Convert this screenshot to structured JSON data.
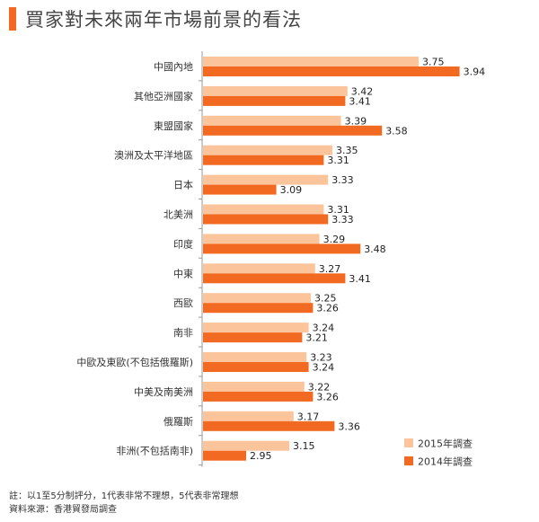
{
  "page": {
    "title": "買家對未來兩年市場前景的看法",
    "notes": [
      "註：以1至5分制評分，1代表非常不理想，5代表非常理想",
      "資料來源：香港貿發局調查"
    ]
  },
  "colors": {
    "title_accent": "#f26a21",
    "series_2015": "#fbc49a",
    "series_2014": "#f26a21"
  },
  "chart_data": {
    "type": "bar",
    "orientation": "horizontal",
    "title": "買家對未來兩年市場前景的看法",
    "categories": [
      "中國內地",
      "其他亞洲國家",
      "東盟國家",
      "澳洲及太平洋地區",
      "日本",
      "北美洲",
      "印度",
      "中東",
      "西歐",
      "南非",
      "中歐及東歐(不包括俄羅斯)",
      "中美及南美洲",
      "俄羅斯",
      "非洲(不包括南非)"
    ],
    "series": [
      {
        "name": "2015年調查",
        "color": "#fbc49a",
        "values": [
          3.75,
          3.42,
          3.39,
          3.35,
          3.33,
          3.31,
          3.29,
          3.27,
          3.25,
          3.24,
          3.23,
          3.22,
          3.17,
          3.15
        ]
      },
      {
        "name": "2014年調查",
        "color": "#f26a21",
        "values": [
          3.94,
          3.41,
          3.58,
          3.31,
          3.09,
          3.33,
          3.48,
          3.41,
          3.26,
          3.21,
          3.24,
          3.26,
          3.36,
          2.95
        ]
      }
    ],
    "value_labels": [
      [
        "3.75",
        "3.42",
        "3.39",
        "3.35",
        "3.33",
        "3.31",
        "3.29",
        "3.27",
        "3.25",
        "3.24",
        "3.23",
        "3.22",
        "3.17",
        "3.15"
      ],
      [
        "3.94",
        "3.41",
        "3.58",
        "3.31",
        "3.09",
        "3.33",
        "3.48",
        "3.41",
        "3.26",
        "3.21",
        "3.24",
        "3.26",
        "3.36",
        "2.95"
      ]
    ],
    "legend_position": "bottom-right",
    "grid": false
  }
}
